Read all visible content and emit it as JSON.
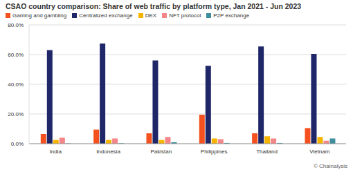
{
  "chart_data": {
    "type": "bar",
    "title": "CSAO country comparison: Share of web traffic by platform type, Jan 2021 - Jun 2023",
    "categories": [
      "India",
      "Indonesia",
      "Pakistan",
      "Philippines",
      "Thailand",
      "Vietnam"
    ],
    "series": [
      {
        "name": "Gaming and gambling",
        "color": "#f4511e",
        "values": [
          6.5,
          9.5,
          7,
          19.5,
          7,
          10.5
        ]
      },
      {
        "name": "Centralized exchange",
        "color": "#1f2769",
        "values": [
          63,
          67.5,
          56,
          52.5,
          65.5,
          60.5
        ]
      },
      {
        "name": "DEX",
        "color": "#f6b400",
        "values": [
          2.5,
          2.5,
          2.5,
          3.5,
          5,
          4.5
        ]
      },
      {
        "name": "NFT protocol",
        "color": "#f4868a",
        "values": [
          4,
          3.5,
          4.5,
          3,
          3.5,
          2
        ]
      },
      {
        "name": "P2P exchange",
        "color": "#3e8e9e",
        "values": [
          0.2,
          0.3,
          1,
          0.5,
          0.5,
          3.5
        ]
      }
    ],
    "ylim": [
      0,
      80
    ],
    "yticks": [
      {
        "value": 0,
        "label": "0.0%"
      },
      {
        "value": 20,
        "label": "20.0%"
      },
      {
        "value": 40,
        "label": "40.0%"
      },
      {
        "value": 60,
        "label": "60.0%"
      },
      {
        "value": 80,
        "label": "80.0%"
      }
    ],
    "grid": true,
    "legend": "top-left",
    "annotations": [
      "© Chainalysis"
    ]
  }
}
